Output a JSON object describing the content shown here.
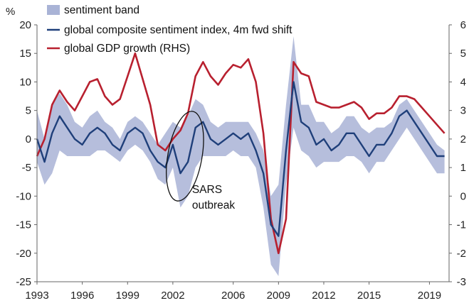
{
  "chart_data": {
    "type": "line",
    "y_left_label": "%",
    "y_left_range": [
      -25,
      20
    ],
    "y_left_ticks": [
      "20",
      "15",
      "10",
      "5",
      "0",
      "-5",
      "-10",
      "-15",
      "-20",
      "-25"
    ],
    "y_right_range": [
      -3,
      6
    ],
    "y_right_ticks": [
      "6",
      "5",
      "4",
      "3",
      "2",
      "1",
      "0",
      "-1",
      "-2",
      "-3"
    ],
    "x_range": [
      1993,
      2020.3
    ],
    "x_ticks": [
      "1993",
      "1996",
      "1999",
      "2002",
      "2006",
      "2009",
      "2012",
      "2015",
      "2019"
    ],
    "grid": false,
    "legend_position": "top-left",
    "colors": {
      "band": "#a9b3d6",
      "sentiment": "#1f3f7a",
      "gdp": "#b8202f"
    },
    "series": [
      {
        "name": "sentiment band",
        "axis": "left",
        "kind": "band",
        "x": [
          1993.0,
          1993.5,
          1994.0,
          1994.5,
          1995.0,
          1995.5,
          1996.0,
          1996.5,
          1997.0,
          1997.5,
          1998.0,
          1998.5,
          1999.0,
          1999.5,
          2000.0,
          2000.5,
          2001.0,
          2001.5,
          2002.0,
          2002.5,
          2003.0,
          2003.5,
          2004.0,
          2004.5,
          2005.0,
          2005.5,
          2006.0,
          2006.5,
          2007.0,
          2007.5,
          2008.0,
          2008.5,
          2009.0,
          2009.5,
          2010.0,
          2010.5,
          2011.0,
          2011.5,
          2012.0,
          2012.5,
          2013.0,
          2013.5,
          2014.0,
          2014.5,
          2015.0,
          2015.5,
          2016.0,
          2016.5,
          2017.0,
          2017.5,
          2018.0,
          2018.5,
          2019.0,
          2019.5,
          2020.0
        ],
        "upper": [
          5,
          0,
          6,
          8,
          6,
          3,
          2,
          4,
          5,
          3,
          2,
          0,
          3,
          4,
          3,
          1,
          -1,
          1,
          3,
          2,
          4,
          7,
          6,
          3,
          2,
          3,
          3,
          3,
          3,
          1,
          -2,
          -10,
          -8,
          6,
          18,
          6,
          6,
          3,
          3,
          1,
          2,
          4,
          4,
          2,
          1,
          2,
          2,
          3,
          6,
          7,
          5,
          3,
          1,
          -1,
          -2
        ],
        "lower": [
          -4,
          -8,
          -6,
          -2,
          -3,
          -3,
          -3,
          -3,
          -2,
          -2,
          -3,
          -4,
          -2,
          -1,
          -2,
          -4,
          -7,
          -8,
          -5,
          -12,
          -10,
          -5,
          -3,
          -3,
          -3,
          -3,
          -2,
          -3,
          -3,
          -5,
          -12,
          -22,
          -24,
          -8,
          2,
          -2,
          -3,
          -5,
          -4,
          -4,
          -4,
          -3,
          -3,
          -4,
          -6,
          -4,
          -4,
          -2,
          0,
          2,
          0,
          -2,
          -4,
          -6,
          -6
        ]
      },
      {
        "name": "global composite sentiment index, 4m fwd shift",
        "axis": "left",
        "x": [
          1993.0,
          1993.5,
          1994.0,
          1994.5,
          1995.0,
          1995.5,
          1996.0,
          1996.5,
          1997.0,
          1997.5,
          1998.0,
          1998.5,
          1999.0,
          1999.5,
          2000.0,
          2000.5,
          2001.0,
          2001.5,
          2002.0,
          2002.5,
          2003.0,
          2003.5,
          2004.0,
          2004.5,
          2005.0,
          2005.5,
          2006.0,
          2006.5,
          2007.0,
          2007.5,
          2008.0,
          2008.5,
          2009.0,
          2009.5,
          2010.0,
          2010.5,
          2011.0,
          2011.5,
          2012.0,
          2012.5,
          2013.0,
          2013.5,
          2014.0,
          2014.5,
          2015.0,
          2015.5,
          2016.0,
          2016.5,
          2017.0,
          2017.5,
          2018.0,
          2018.5,
          2019.0,
          2019.5,
          2020.0
        ],
        "values": [
          0,
          -4,
          1,
          4,
          2,
          0,
          -1,
          1,
          2,
          1,
          -1,
          -2,
          1,
          2,
          1,
          -2,
          -4,
          -5,
          -1,
          -6,
          -4,
          2,
          3,
          0,
          -1,
          0,
          1,
          0,
          1,
          -2,
          -6,
          -15,
          -17,
          -2,
          10,
          3,
          2,
          -1,
          0,
          -2,
          -1,
          1,
          1,
          -1,
          -3,
          -1,
          -1,
          1,
          4,
          5,
          3,
          1,
          -1,
          -3,
          -3
        ]
      },
      {
        "name": "global GDP growth (RHS)",
        "axis": "right",
        "x": [
          1993.0,
          1993.5,
          1994.0,
          1994.5,
          1995.0,
          1995.5,
          1996.0,
          1996.5,
          1997.0,
          1997.5,
          1998.0,
          1998.5,
          1999.0,
          1999.5,
          2000.0,
          2000.5,
          2001.0,
          2001.5,
          2002.0,
          2002.5,
          2003.0,
          2003.5,
          2004.0,
          2004.5,
          2005.0,
          2005.5,
          2006.0,
          2006.5,
          2007.0,
          2007.5,
          2008.0,
          2008.5,
          2009.0,
          2009.5,
          2010.0,
          2010.5,
          2011.0,
          2011.5,
          2012.0,
          2012.5,
          2013.0,
          2013.5,
          2014.0,
          2014.5,
          2015.0,
          2015.5,
          2016.0,
          2016.5,
          2017.0,
          2017.5,
          2018.0,
          2018.5,
          2019.0,
          2019.5,
          2020.0
        ],
        "values": [
          1.4,
          2.0,
          3.2,
          3.7,
          3.3,
          3.0,
          3.5,
          4.0,
          4.1,
          3.5,
          3.2,
          3.4,
          4.2,
          5.0,
          4.1,
          3.2,
          1.8,
          1.6,
          2.0,
          2.3,
          2.9,
          4.2,
          4.7,
          4.2,
          3.9,
          4.3,
          4.6,
          4.5,
          4.8,
          4.0,
          2.2,
          -0.8,
          -2.0,
          -0.8,
          4.7,
          4.3,
          4.2,
          3.3,
          3.2,
          3.1,
          3.1,
          3.2,
          3.3,
          3.1,
          2.7,
          2.9,
          2.9,
          3.1,
          3.5,
          3.5,
          3.4,
          3.1,
          2.8,
          2.5,
          2.2
        ]
      }
    ],
    "annotations": [
      {
        "text_lines": [
          "SARS",
          "outbreak"
        ],
        "x": 2002.8,
        "y": -3,
        "shape": "ellipse-outline"
      }
    ]
  }
}
